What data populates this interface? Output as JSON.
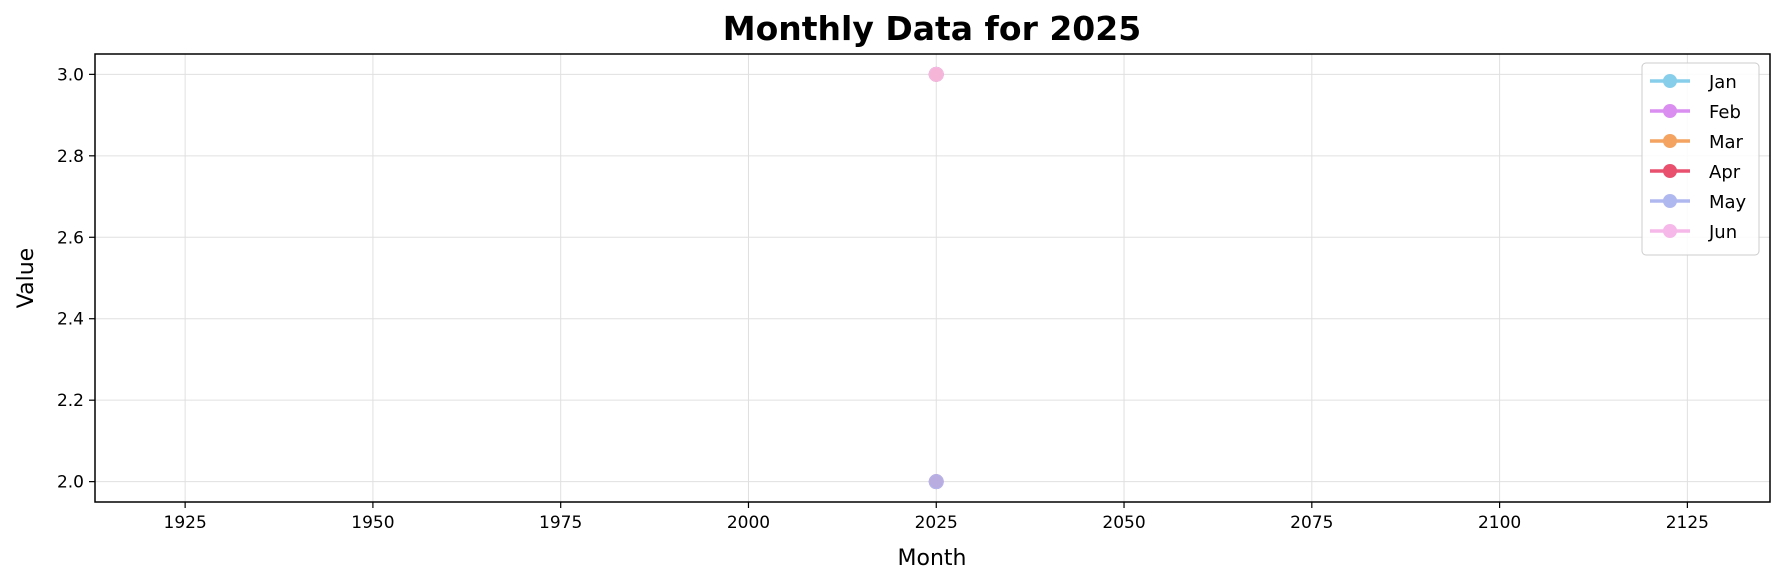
{
  "chart_data": {
    "type": "line",
    "title": "Monthly Data for 2025",
    "xlabel": "Month",
    "ylabel": "Value",
    "xlim": [
      1913,
      2136
    ],
    "ylim": [
      1.95,
      3.05
    ],
    "x_ticks": [
      1925,
      1950,
      1975,
      2000,
      2025,
      2050,
      2075,
      2100,
      2125
    ],
    "y_ticks": [
      2.0,
      2.2,
      2.4,
      2.6,
      2.8,
      3.0
    ],
    "grid": true,
    "legend_position": "top-right",
    "series": [
      {
        "name": "Jan",
        "color": "#87ceeb",
        "points": [
          [
            2025,
            3.0
          ]
        ]
      },
      {
        "name": "Feb",
        "color": "#d98ef0",
        "points": [
          [
            2025,
            3.0
          ]
        ]
      },
      {
        "name": "Mar",
        "color": "#f4a460",
        "points": [
          [
            2025,
            3.0
          ]
        ]
      },
      {
        "name": "Apr",
        "color": "#e8506e",
        "points": [
          [
            2025,
            2.0
          ]
        ]
      },
      {
        "name": "May",
        "color": "#b0b8f0",
        "points": [
          [
            2025,
            2.0
          ]
        ]
      },
      {
        "name": "Jun",
        "color": "#f5b8e8",
        "points": [
          [
            2025,
            3.0
          ]
        ]
      }
    ]
  }
}
